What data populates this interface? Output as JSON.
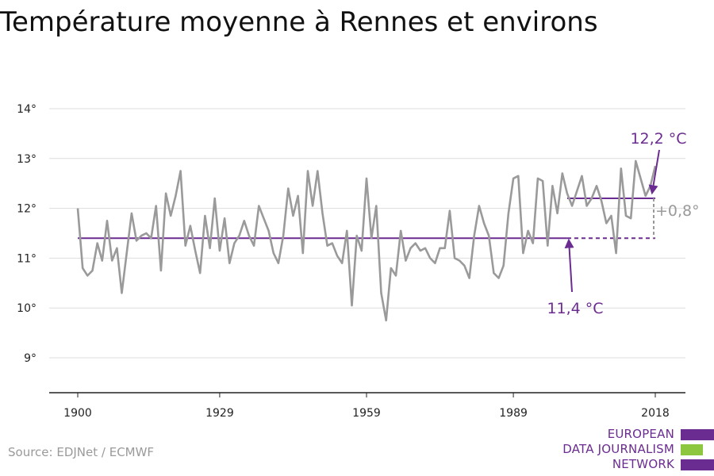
{
  "title": "Température moyenne à Rennes et environs",
  "source": "Source: EDJNet / ECMWF",
  "logo": {
    "lines": [
      "EUROPEAN",
      "DATA JOURNALISM",
      "NETWORK"
    ],
    "colors": [
      "#6b2c91",
      "#8dc63f",
      "#6b2c91"
    ]
  },
  "colors": {
    "series": "#9a9a9a",
    "reference": "#6b2c91",
    "grid": "#dddddd",
    "axis": "#222222",
    "delta_label": "#9a9a9a"
  },
  "chart_data": {
    "type": "line",
    "title": "Température moyenne à Rennes et environs",
    "xlabel": "",
    "ylabel": "",
    "xlim": [
      1900,
      2018
    ],
    "ylim": [
      8.3,
      14.5
    ],
    "x_ticks": [
      1900,
      1929,
      1959,
      1989,
      2018
    ],
    "y_ticks": [
      {
        "value": 9,
        "label": "9°"
      },
      {
        "value": 10,
        "label": "10°"
      },
      {
        "value": 11,
        "label": "11°"
      },
      {
        "value": 12,
        "label": "12°"
      },
      {
        "value": 13,
        "label": "13°"
      },
      {
        "value": 14,
        "label": "14°"
      }
    ],
    "grid": true,
    "series": [
      {
        "values": [
          [
            1900,
            12.0
          ],
          [
            1901,
            10.8
          ],
          [
            1902,
            10.65
          ],
          [
            1903,
            10.75
          ],
          [
            1904,
            11.3
          ],
          [
            1905,
            10.95
          ],
          [
            1906,
            11.75
          ],
          [
            1907,
            10.95
          ],
          [
            1908,
            11.2
          ],
          [
            1909,
            10.3
          ],
          [
            1910,
            11.1
          ],
          [
            1911,
            11.9
          ],
          [
            1912,
            11.35
          ],
          [
            1913,
            11.45
          ],
          [
            1914,
            11.5
          ],
          [
            1915,
            11.4
          ],
          [
            1916,
            12.05
          ],
          [
            1917,
            10.75
          ],
          [
            1918,
            12.3
          ],
          [
            1919,
            11.85
          ],
          [
            1920,
            12.25
          ],
          [
            1921,
            12.75
          ],
          [
            1922,
            11.25
          ],
          [
            1923,
            11.65
          ],
          [
            1924,
            11.15
          ],
          [
            1925,
            10.7
          ],
          [
            1926,
            11.85
          ],
          [
            1927,
            11.2
          ],
          [
            1928,
            12.2
          ],
          [
            1929,
            11.15
          ],
          [
            1930,
            11.8
          ],
          [
            1931,
            10.9
          ],
          [
            1932,
            11.3
          ],
          [
            1933,
            11.45
          ],
          [
            1934,
            11.75
          ],
          [
            1935,
            11.45
          ],
          [
            1936,
            11.25
          ],
          [
            1937,
            12.05
          ],
          [
            1938,
            11.8
          ],
          [
            1939,
            11.55
          ],
          [
            1940,
            11.1
          ],
          [
            1941,
            10.9
          ],
          [
            1942,
            11.45
          ],
          [
            1943,
            12.4
          ],
          [
            1944,
            11.85
          ],
          [
            1945,
            12.25
          ],
          [
            1946,
            11.1
          ],
          [
            1947,
            12.75
          ],
          [
            1948,
            12.05
          ],
          [
            1949,
            12.75
          ],
          [
            1950,
            11.9
          ],
          [
            1951,
            11.25
          ],
          [
            1952,
            11.3
          ],
          [
            1953,
            11.05
          ],
          [
            1954,
            10.9
          ],
          [
            1955,
            11.55
          ],
          [
            1956,
            10.05
          ],
          [
            1957,
            11.45
          ],
          [
            1958,
            11.15
          ],
          [
            1959,
            12.6
          ],
          [
            1960,
            11.4
          ],
          [
            1961,
            12.05
          ],
          [
            1962,
            10.3
          ],
          [
            1963,
            9.75
          ],
          [
            1964,
            10.8
          ],
          [
            1965,
            10.65
          ],
          [
            1966,
            11.55
          ],
          [
            1967,
            10.95
          ],
          [
            1968,
            11.2
          ],
          [
            1969,
            11.3
          ],
          [
            1970,
            11.15
          ],
          [
            1971,
            11.2
          ],
          [
            1972,
            11.0
          ],
          [
            1973,
            10.9
          ],
          [
            1974,
            11.2
          ],
          [
            1975,
            11.2
          ],
          [
            1976,
            11.95
          ],
          [
            1977,
            11.0
          ],
          [
            1978,
            10.95
          ],
          [
            1979,
            10.85
          ],
          [
            1980,
            10.6
          ],
          [
            1981,
            11.45
          ],
          [
            1982,
            12.05
          ],
          [
            1983,
            11.7
          ],
          [
            1984,
            11.45
          ],
          [
            1985,
            10.7
          ],
          [
            1986,
            10.6
          ],
          [
            1987,
            10.85
          ],
          [
            1988,
            11.9
          ],
          [
            1989,
            12.6
          ],
          [
            1990,
            12.65
          ],
          [
            1991,
            11.1
          ],
          [
            1992,
            11.55
          ],
          [
            1993,
            11.3
          ],
          [
            1994,
            12.6
          ],
          [
            1995,
            12.55
          ],
          [
            1996,
            11.25
          ],
          [
            1997,
            12.45
          ],
          [
            1998,
            11.9
          ],
          [
            1999,
            12.7
          ],
          [
            2000,
            12.3
          ],
          [
            2001,
            12.05
          ],
          [
            2002,
            12.35
          ],
          [
            2003,
            12.65
          ],
          [
            2004,
            12.05
          ],
          [
            2005,
            12.2
          ],
          [
            2006,
            12.45
          ],
          [
            2007,
            12.15
          ],
          [
            2008,
            11.7
          ],
          [
            2009,
            11.85
          ],
          [
            2010,
            11.1
          ],
          [
            2011,
            12.8
          ],
          [
            2012,
            11.85
          ],
          [
            2013,
            11.8
          ],
          [
            2014,
            12.95
          ],
          [
            2015,
            12.6
          ],
          [
            2016,
            12.25
          ],
          [
            2017,
            12.45
          ],
          [
            2018,
            12.85
          ]
        ]
      }
    ],
    "reference": {
      "baseline": {
        "value": 11.4,
        "from": 1900,
        "to": 2000,
        "dashed_to": 2018,
        "label": "11,4 °C"
      },
      "recent": {
        "value": 12.2,
        "from": 2000,
        "to": 2018,
        "label": "12,2 °C"
      },
      "delta_label": "+0,8°"
    }
  }
}
